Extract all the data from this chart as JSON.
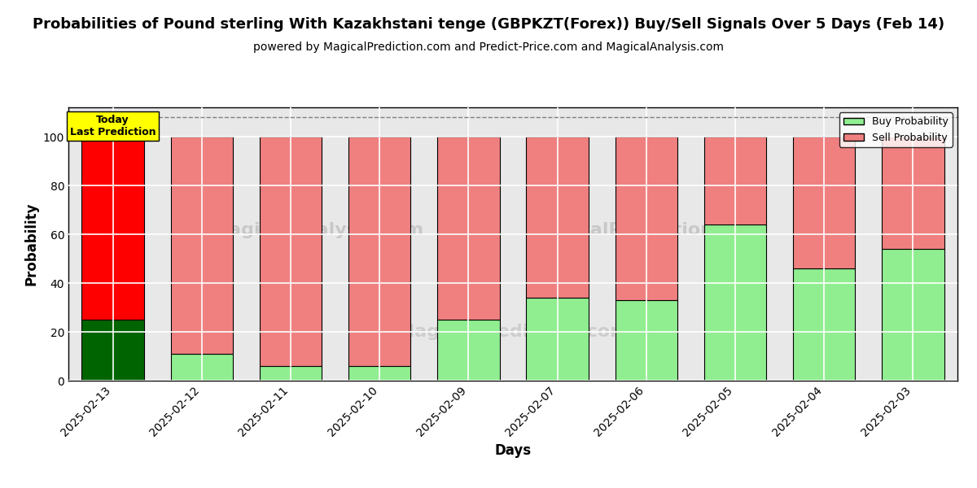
{
  "title": "Probabilities of Pound sterling With Kazakhstani tenge (GBPKZT(Forex)) Buy/Sell Signals Over 5 Days (Feb 14)",
  "subtitle": "powered by MagicalPrediction.com and Predict-Price.com and MagicalAnalysis.com",
  "xlabel": "Days",
  "ylabel": "Probability",
  "categories": [
    "2025-02-13",
    "2025-02-12",
    "2025-02-11",
    "2025-02-10",
    "2025-02-09",
    "2025-02-07",
    "2025-02-06",
    "2025-02-05",
    "2025-02-04",
    "2025-02-03"
  ],
  "buy_values": [
    25,
    11,
    6,
    6,
    25,
    34,
    33,
    64,
    46,
    54
  ],
  "sell_values": [
    75,
    89,
    94,
    94,
    75,
    66,
    67,
    36,
    54,
    46
  ],
  "today_buy_color": "#006400",
  "today_sell_color": "#ff0000",
  "normal_buy_color": "#90EE90",
  "normal_sell_color": "#F08080",
  "today_label_bg": "#ffff00",
  "today_label_text": "Today\nLast Prediction",
  "legend_buy_label": "Buy Probability",
  "legend_sell_label": "Sell Probability",
  "ylim": [
    0,
    112
  ],
  "yticks": [
    0,
    20,
    40,
    60,
    80,
    100
  ],
  "plot_bg_color": "#e8e8e8",
  "background_color": "#ffffff",
  "title_fontsize": 13,
  "subtitle_fontsize": 10,
  "axis_label_fontsize": 12,
  "tick_fontsize": 10
}
